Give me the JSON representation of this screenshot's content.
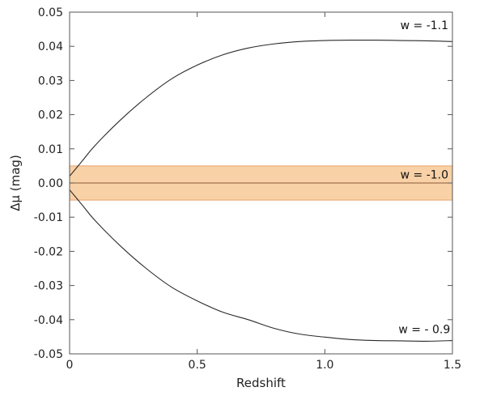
{
  "chart_data": {
    "type": "line",
    "xlabel": "Redshift",
    "ylabel": "Δμ (mag)",
    "xlim": [
      0,
      1.5
    ],
    "ylim": [
      -0.05,
      0.05
    ],
    "xticks": [
      0,
      0.5,
      1.0,
      1.5
    ],
    "xtick_labels": [
      "0",
      "0.5",
      "1.0",
      "1.5"
    ],
    "yticks": [
      0.05,
      0.04,
      0.03,
      0.02,
      0.01,
      0.0,
      -0.01,
      -0.02,
      -0.03,
      -0.04,
      -0.05
    ],
    "ytick_labels": [
      "0.05",
      "0.04",
      "0.03",
      "0.02",
      "0.01",
      "0.00",
      "-0.01",
      "-0.02",
      "-0.03",
      "-0.04",
      "-0.05"
    ],
    "grid": false,
    "band": {
      "ymin": -0.005,
      "ymax": 0.005,
      "color": "#f9d1a6",
      "edge_color": "#e8a36a"
    },
    "series": [
      {
        "name": "w = -1.1",
        "x": [
          0.0,
          0.05,
          0.1,
          0.2,
          0.3,
          0.4,
          0.5,
          0.6,
          0.7,
          0.8,
          0.9,
          1.0,
          1.1,
          1.2,
          1.3,
          1.4,
          1.5
        ],
        "y": [
          0.002,
          0.0065,
          0.011,
          0.0185,
          0.025,
          0.0305,
          0.0345,
          0.0375,
          0.0395,
          0.0407,
          0.0414,
          0.0417,
          0.0418,
          0.0418,
          0.0417,
          0.0416,
          0.0414
        ]
      },
      {
        "name": "w = -1.0",
        "x": [
          0.0,
          1.5
        ],
        "y": [
          0.0,
          0.0
        ]
      },
      {
        "name": "w = - 0.9",
        "x": [
          0.0,
          0.05,
          0.1,
          0.2,
          0.3,
          0.4,
          0.5,
          0.6,
          0.7,
          0.8,
          0.9,
          1.0,
          1.1,
          1.2,
          1.3,
          1.4,
          1.5
        ],
        "y": [
          -0.002,
          -0.0065,
          -0.011,
          -0.0185,
          -0.025,
          -0.0305,
          -0.0345,
          -0.0378,
          -0.04,
          -0.0425,
          -0.0442,
          -0.0451,
          -0.0458,
          -0.0461,
          -0.0462,
          -0.0463,
          -0.0461
        ]
      }
    ],
    "curve_labels": [
      "w = -1.1",
      "w = -1.0",
      "w = - 0.9"
    ],
    "colors": {
      "line": "#2a2a2a",
      "axis": "#555555"
    }
  }
}
